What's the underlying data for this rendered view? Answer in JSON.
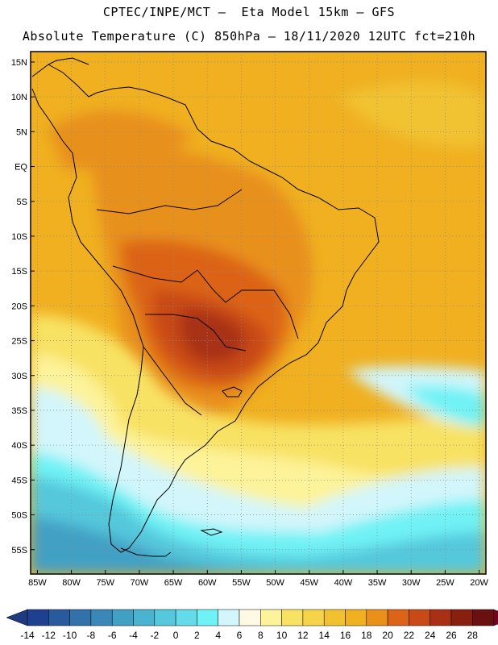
{
  "header": {
    "line1": "CPTEC/INPE/MCT –  Eta Model 15km – GFS",
    "line2": "Absolute Temperature (C) 850hPa – 18/11/2020 12UTC fct=210h"
  },
  "map": {
    "lat_labels": [
      "15N",
      "10N",
      "5N",
      "EQ",
      "5S",
      "10S",
      "15S",
      "20S",
      "25S",
      "30S",
      "35S",
      "40S",
      "45S",
      "50S",
      "55S"
    ],
    "lon_labels": [
      "85W",
      "80W",
      "75W",
      "70W",
      "65W",
      "60W",
      "55W",
      "50W",
      "45W",
      "40W",
      "35W",
      "30W",
      "25W",
      "20W"
    ],
    "lat_values": [
      15,
      10,
      5,
      0,
      -5,
      -10,
      -15,
      -20,
      -25,
      -30,
      -35,
      -40,
      -45,
      -50,
      -55
    ],
    "lon_values": [
      -85,
      -80,
      -75,
      -70,
      -65,
      -60,
      -55,
      -50,
      -45,
      -40,
      -35,
      -30,
      -25,
      -20
    ],
    "lon_range": [
      -86,
      -19
    ],
    "lat_range": [
      -58.5,
      16.5
    ],
    "grid": "dotted"
  },
  "colorbar": {
    "labels": [
      "-14",
      "-12",
      "-10",
      "-8",
      "-6",
      "-4",
      "-2",
      "0",
      "2",
      "4",
      "6",
      "8",
      "10",
      "12",
      "14",
      "16",
      "18",
      "20",
      "22",
      "24",
      "26",
      "28"
    ],
    "colors": [
      "#1f3f8f",
      "#2a5a9e",
      "#3272ab",
      "#3a88b8",
      "#42a0c4",
      "#4ab4d0",
      "#55c8dc",
      "#64dbe8",
      "#6ff2f5",
      "#d2f6fb",
      "#fff8e3",
      "#fdf39a",
      "#f8e264",
      "#f5d44a",
      "#f1c230",
      "#f0b020",
      "#e8901a",
      "#dc6418",
      "#c84a16",
      "#a83014",
      "#882010",
      "#6a1010"
    ]
  }
}
